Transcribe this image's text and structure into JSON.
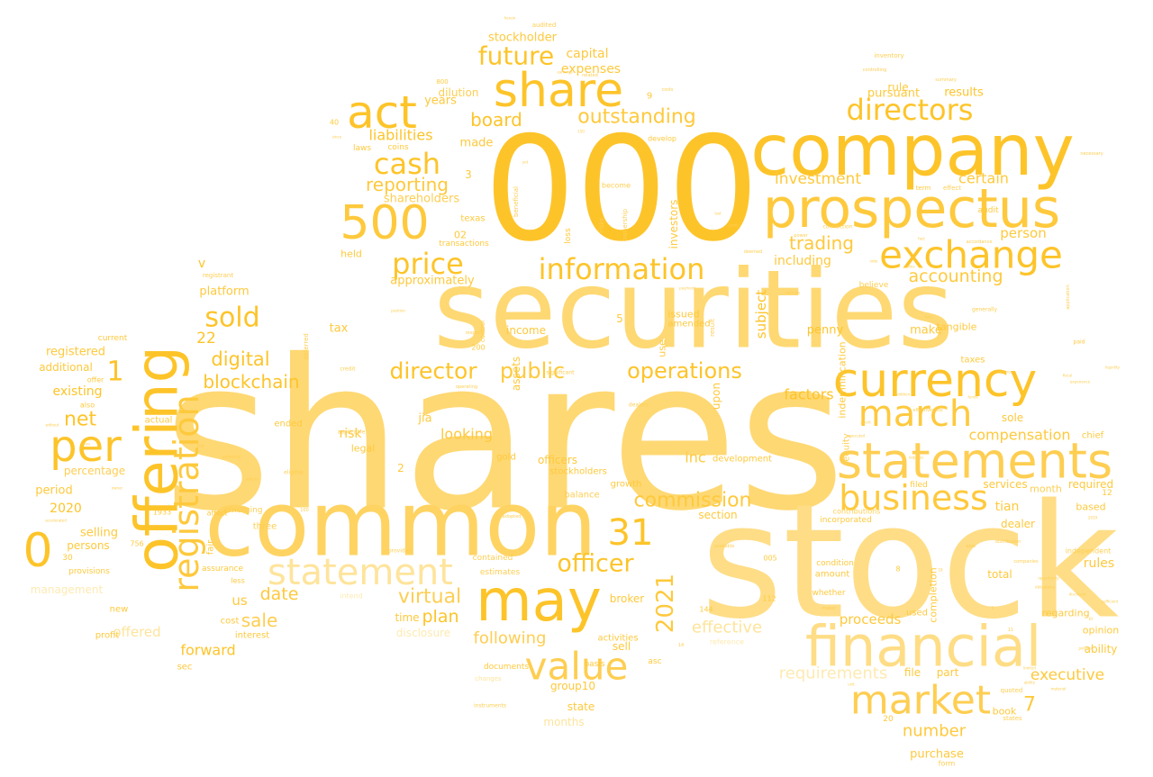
{
  "palette": {
    "background": "#ffffff",
    "shades": [
      "#fdc21f",
      "#fdc42a",
      "#fec93d",
      "#fece52",
      "#fed362",
      "#fed873",
      "#fedd86",
      "#fee49c",
      "#feeab2",
      "#fff0c8"
    ]
  },
  "words": [
    {
      "text": "shares",
      "weight": 1.0
    },
    {
      "text": "stock",
      "weight": 0.93
    },
    {
      "text": "000",
      "weight": 0.9
    },
    {
      "text": "securities",
      "weight": 0.88
    },
    {
      "text": "common",
      "weight": 0.75
    },
    {
      "text": "company",
      "weight": 0.62
    },
    {
      "text": "offering",
      "weight": 0.55
    },
    {
      "text": "prospectus",
      "weight": 0.55
    },
    {
      "text": "financial",
      "weight": 0.52
    },
    {
      "text": "may",
      "weight": 0.5
    },
    {
      "text": "statements",
      "weight": 0.48
    },
    {
      "text": "share",
      "weight": 0.44
    },
    {
      "text": "currency",
      "weight": 0.44
    },
    {
      "text": "per",
      "weight": 0.44
    },
    {
      "text": "act",
      "weight": 0.43
    },
    {
      "text": "500",
      "weight": 0.43
    },
    {
      "text": "market",
      "weight": 0.41
    },
    {
      "text": "value",
      "weight": 0.4
    },
    {
      "text": "registration",
      "weight": 0.4
    },
    {
      "text": "exchange",
      "weight": 0.36
    },
    {
      "text": "0",
      "weight": 0.4
    },
    {
      "text": "statement",
      "weight": 0.36
    },
    {
      "text": "business",
      "weight": 0.35
    },
    {
      "text": "march",
      "weight": 0.36
    },
    {
      "text": "information",
      "weight": 0.33
    },
    {
      "text": "price",
      "weight": 0.33
    },
    {
      "text": "31",
      "weight": 0.38
    },
    {
      "text": "directors",
      "weight": 0.31
    },
    {
      "text": "cash",
      "weight": 0.3
    },
    {
      "text": "sold",
      "weight": 0.3
    },
    {
      "text": "future",
      "weight": 0.28
    },
    {
      "text": "officer",
      "weight": 0.28
    },
    {
      "text": "2021",
      "weight": 0.28
    },
    {
      "text": "director",
      "weight": 0.27
    },
    {
      "text": "public",
      "weight": 0.25
    },
    {
      "text": "operations",
      "weight": 0.25
    },
    {
      "text": "commission",
      "weight": 0.24
    },
    {
      "text": "virtual",
      "weight": 0.24
    },
    {
      "text": "outstanding",
      "weight": 0.24
    },
    {
      "text": "trading",
      "weight": 0.2
    },
    {
      "text": "accounting",
      "weight": 0.2
    },
    {
      "text": "digital",
      "weight": 0.22
    },
    {
      "text": "blockchain",
      "weight": 0.22
    },
    {
      "text": "net",
      "weight": 0.24
    },
    {
      "text": "board",
      "weight": 0.21
    },
    {
      "text": "reporting",
      "weight": 0.21
    },
    {
      "text": "sale",
      "weight": 0.22
    },
    {
      "text": "date",
      "weight": 0.21
    },
    {
      "text": "plan",
      "weight": 0.21
    },
    {
      "text": "effective",
      "weight": 0.2
    },
    {
      "text": "following",
      "weight": 0.2
    },
    {
      "text": "requirements",
      "weight": 0.19
    },
    {
      "text": "executive",
      "weight": 0.2
    },
    {
      "text": "number",
      "weight": 0.2
    },
    {
      "text": "compensation",
      "weight": 0.19
    },
    {
      "text": "investment",
      "weight": 0.19
    },
    {
      "text": "certain",
      "weight": 0.18
    },
    {
      "text": "forward",
      "weight": 0.18
    },
    {
      "text": "proceeds",
      "weight": 0.18
    },
    {
      "text": "factors",
      "weight": 0.18
    },
    {
      "text": "looking",
      "weight": 0.18
    },
    {
      "text": "7",
      "weight": 0.2
    },
    {
      "text": "1",
      "weight": 0.28
    },
    {
      "text": "22",
      "weight": 0.18
    },
    {
      "text": "person",
      "weight": 0.16
    },
    {
      "text": "including",
      "weight": 0.16
    },
    {
      "text": "liabilities",
      "weight": 0.17
    },
    {
      "text": "shareholders",
      "weight": 0.15
    },
    {
      "text": "capital",
      "weight": 0.15
    },
    {
      "text": "expenses",
      "weight": 0.15
    },
    {
      "text": "stockholder",
      "weight": 0.14
    },
    {
      "text": "results",
      "weight": 0.14
    },
    {
      "text": "pursuant",
      "weight": 0.14
    },
    {
      "text": "rule",
      "weight": 0.14
    },
    {
      "text": "made",
      "weight": 0.14
    },
    {
      "text": "years",
      "weight": 0.14
    },
    {
      "text": "dilution",
      "weight": 0.13
    },
    {
      "text": "approximately",
      "weight": 0.14
    },
    {
      "text": "platform",
      "weight": 0.14
    },
    {
      "text": "registered",
      "weight": 0.14
    },
    {
      "text": "additional",
      "weight": 0.13
    },
    {
      "text": "existing",
      "weight": 0.15
    },
    {
      "text": "2020",
      "weight": 0.16
    },
    {
      "text": "period",
      "weight": 0.15
    },
    {
      "text": "selling",
      "weight": 0.14
    },
    {
      "text": "percentage",
      "weight": 0.13
    },
    {
      "text": "persons",
      "weight": 0.13
    },
    {
      "text": "management",
      "weight": 0.13
    },
    {
      "text": "offered",
      "weight": 0.16
    },
    {
      "text": "us",
      "weight": 0.16
    },
    {
      "text": "tax",
      "weight": 0.14
    },
    {
      "text": "risk",
      "weight": 0.14
    },
    {
      "text": "jia",
      "weight": 0.14
    },
    {
      "text": "inc",
      "weight": 0.16
    },
    {
      "text": "income",
      "weight": 0.13
    },
    {
      "text": "issued",
      "weight": 0.12
    },
    {
      "text": "make",
      "weight": 0.14
    },
    {
      "text": "penny",
      "weight": 0.14
    },
    {
      "text": "sole",
      "weight": 0.13
    },
    {
      "text": "tian",
      "weight": 0.15
    },
    {
      "text": "dealer",
      "weight": 0.13
    },
    {
      "text": "services",
      "weight": 0.13
    },
    {
      "text": "month",
      "weight": 0.12
    },
    {
      "text": "required",
      "weight": 0.13
    },
    {
      "text": "based",
      "weight": 0.12
    },
    {
      "text": "rules",
      "weight": 0.14
    },
    {
      "text": "total",
      "weight": 0.13
    },
    {
      "text": "ability",
      "weight": 0.12
    },
    {
      "text": "opinion",
      "weight": 0.12
    },
    {
      "text": "regarding",
      "weight": 0.12
    },
    {
      "text": "group10",
      "weight": 0.13
    },
    {
      "text": "state",
      "weight": 0.13
    },
    {
      "text": "time",
      "weight": 0.13
    },
    {
      "text": "broker",
      "weight": 0.13
    },
    {
      "text": "sell",
      "weight": 0.13
    },
    {
      "text": "officers",
      "weight": 0.13
    },
    {
      "text": "stockholders",
      "weight": 0.11
    },
    {
      "text": "growth",
      "weight": 0.11
    },
    {
      "text": "balance",
      "weight": 0.12
    },
    {
      "text": "development",
      "weight": 0.11
    },
    {
      "text": "section",
      "weight": 0.13
    },
    {
      "text": "upon",
      "weight": 0.13
    },
    {
      "text": "use",
      "weight": 0.12
    },
    {
      "text": "subject",
      "weight": 0.15
    },
    {
      "text": "indemnification",
      "weight": 0.12
    },
    {
      "text": "equity",
      "weight": 0.11
    },
    {
      "text": "completion",
      "weight": 0.12
    },
    {
      "text": "part",
      "weight": 0.12
    },
    {
      "text": "file",
      "weight": 0.12
    },
    {
      "text": "purchase",
      "weight": 0.13
    },
    {
      "text": "book",
      "weight": 0.11
    },
    {
      "text": "investors",
      "weight": 0.13
    },
    {
      "text": "assets",
      "weight": 0.13
    },
    {
      "text": "months",
      "weight": 0.13
    },
    {
      "text": "disclosure",
      "weight": 0.12
    },
    {
      "text": "amended",
      "weight": 0.11
    },
    {
      "text": "held",
      "weight": 0.12
    },
    {
      "text": "transactions",
      "weight": 0.1
    },
    {
      "text": "texas",
      "weight": 0.11
    },
    {
      "text": "02",
      "weight": 0.13
    },
    {
      "text": "tangible",
      "weight": 0.12
    },
    {
      "text": "taxes",
      "weight": 0.11
    },
    {
      "text": "believe",
      "weight": 0.1
    },
    {
      "text": "filed",
      "weight": 0.11
    },
    {
      "text": "contributions",
      "weight": 0.1
    },
    {
      "text": "incorporated",
      "weight": 0.1
    },
    {
      "text": "amount",
      "weight": 0.11
    },
    {
      "text": "condition",
      "weight": 0.11
    },
    {
      "text": "whether",
      "weight": 0.1
    },
    {
      "text": "used",
      "weight": 0.11
    },
    {
      "text": "chief",
      "weight": 0.1
    },
    {
      "text": "independent",
      "weight": 0.09
    },
    {
      "text": "ended",
      "weight": 0.11
    },
    {
      "text": "legal",
      "weight": 0.11
    },
    {
      "text": "actual",
      "weight": 0.11
    },
    {
      "text": "interest",
      "weight": 0.11
    },
    {
      "text": "three",
      "weight": 0.1
    },
    {
      "text": "emerging",
      "weight": 0.1
    },
    {
      "text": "cost",
      "weight": 0.1
    },
    {
      "text": "fair",
      "weight": 0.11
    },
    {
      "text": "assurance",
      "weight": 0.1
    },
    {
      "text": "less",
      "weight": 0.09
    },
    {
      "text": "profit",
      "weight": 0.1
    },
    {
      "text": "new",
      "weight": 0.11
    },
    {
      "text": "provisions",
      "weight": 0.1
    },
    {
      "text": "sec",
      "weight": 0.1
    },
    {
      "text": "gold",
      "weight": 0.1
    },
    {
      "text": "activities",
      "weight": 0.11
    },
    {
      "text": "basis",
      "weight": 0.1
    },
    {
      "text": "documents",
      "weight": 0.1
    },
    {
      "text": "estimates",
      "weight": 0.1
    },
    {
      "text": "contained",
      "weight": 0.1
    },
    {
      "text": "asc",
      "weight": 0.1
    },
    {
      "text": "develop",
      "weight": 0.09
    },
    {
      "text": "become",
      "weight": 0.09
    },
    {
      "text": "coins",
      "weight": 0.1
    },
    {
      "text": "laws",
      "weight": 0.1
    },
    {
      "text": "current",
      "weight": 0.1
    },
    {
      "text": "audited",
      "weight": 0.08
    },
    {
      "text": "inventory",
      "weight": 0.08
    },
    {
      "text": "audit",
      "weight": 0.09
    },
    {
      "text": "term",
      "weight": 0.08
    },
    {
      "text": "effect",
      "weight": 0.08
    },
    {
      "text": "affect",
      "weight": 0.09
    },
    {
      "text": "offer",
      "weight": 0.09
    },
    {
      "text": "also",
      "weight": 0.09
    },
    {
      "text": "v",
      "weight": 0.14
    },
    {
      "text": "5",
      "weight": 0.13
    },
    {
      "text": "2",
      "weight": 0.14
    },
    {
      "text": "3",
      "weight": 0.13
    },
    {
      "text": "9",
      "weight": 0.11
    },
    {
      "text": "12",
      "weight": 0.1
    },
    {
      "text": "20",
      "weight": 0.1
    },
    {
      "text": "30",
      "weight": 0.1
    },
    {
      "text": "40",
      "weight": 0.1
    },
    {
      "text": "200",
      "weight": 0.09
    },
    {
      "text": "005",
      "weight": 0.09
    },
    {
      "text": "112",
      "weight": 0.09
    },
    {
      "text": "144",
      "weight": 0.09
    },
    {
      "text": "1933",
      "weight": 0.09
    },
    {
      "text": "756",
      "weight": 0.09
    },
    {
      "text": "800",
      "weight": 0.08
    },
    {
      "text": "8",
      "weight": 0.09
    },
    {
      "text": "loss",
      "weight": 0.1
    },
    {
      "text": "control",
      "weight": 0.08
    },
    {
      "text": "ownership",
      "weight": 0.08
    },
    {
      "text": "beneficial",
      "weight": 0.08
    },
    {
      "text": "risks",
      "weight": 0.08
    },
    {
      "text": "result",
      "weight": 0.08
    },
    {
      "text": "deferred",
      "weight": 0.08
    },
    {
      "text": "registrant",
      "weight": 0.08
    },
    {
      "text": "quoted",
      "weight": 0.07
    },
    {
      "text": "states",
      "weight": 0.07
    },
    {
      "text": "form",
      "weight": 0.08
    },
    {
      "text": "intend",
      "weight": 0.08
    },
    {
      "text": "reference",
      "weight": 0.07
    },
    {
      "text": "changes",
      "weight": 0.07
    },
    {
      "text": "instruments",
      "weight": 0.06
    },
    {
      "text": "provided",
      "weight": 0.07
    },
    {
      "text": "dealers",
      "weight": 0.06
    },
    {
      "text": "significant",
      "weight": 0.06
    },
    {
      "text": "credit",
      "weight": 0.06
    },
    {
      "text": "applicable",
      "weight": 0.06
    },
    {
      "text": "eligible",
      "weight": 0.06
    },
    {
      "text": "connection",
      "weight": 0.06
    },
    {
      "text": "generally",
      "weight": 0.06
    },
    {
      "text": "summary",
      "weight": 0.05
    },
    {
      "text": "controlling",
      "weight": 0.05
    },
    {
      "text": "accordance",
      "weight": 0.05
    },
    {
      "text": "necessary",
      "weight": 0.05
    },
    {
      "text": "application",
      "weight": 0.05
    },
    {
      "text": "effectiveness",
      "weight": 0.05
    },
    {
      "text": "related",
      "weight": 0.05
    },
    {
      "text": "costs",
      "weight": 0.05
    },
    {
      "text": "deemed",
      "weight": 0.05
    },
    {
      "text": "power",
      "weight": 0.05
    },
    {
      "text": "available",
      "weight": 0.05
    },
    {
      "text": "distribution",
      "weight": 0.05
    },
    {
      "text": "operating",
      "weight": 0.05
    },
    {
      "text": "respect",
      "weight": 0.05
    },
    {
      "text": "adopted",
      "weight": 0.05
    },
    {
      "text": "companies",
      "weight": 0.05
    },
    {
      "text": "external",
      "weight": 0.05
    },
    {
      "text": "options",
      "weight": 0.04
    },
    {
      "text": "notes",
      "weight": 0.04
    },
    {
      "text": "unit",
      "weight": 0.04
    },
    {
      "text": "fees",
      "weight": 0.04
    },
    {
      "text": "agent",
      "weight": 0.04
    },
    {
      "text": "sales",
      "weight": 0.04
    },
    {
      "text": "high",
      "weight": 0.04
    },
    {
      "text": "owner",
      "weight": 0.04
    },
    {
      "text": "accelerated",
      "weight": 0.04
    },
    {
      "text": "requires",
      "weight": 0.04
    },
    {
      "text": "maker",
      "weight": 0.05
    },
    {
      "text": "funds",
      "weight": 0.04
    },
    {
      "text": "position",
      "weight": 0.04
    },
    {
      "text": "without",
      "weight": 0.04
    },
    {
      "text": "since",
      "weight": 0.04
    },
    {
      "text": "yet",
      "weight": 0.04
    },
    {
      "text": "payment",
      "weight": 0.04
    },
    {
      "text": "exercise",
      "weight": 0.04
    },
    {
      "text": "issuance",
      "weight": 0.04
    },
    {
      "text": "herein",
      "weight": 0.04
    },
    {
      "text": "liquidity",
      "weight": 0.04
    },
    {
      "text": "fiscal",
      "weight": 0.04
    },
    {
      "text": "addition",
      "weight": 0.04
    },
    {
      "text": "experience",
      "weight": 0.04
    },
    {
      "text": "executed",
      "weight": 0.04
    },
    {
      "text": "earnings",
      "weight": 0.04
    },
    {
      "text": "opportunity",
      "weight": 0.04
    },
    {
      "text": "obligations",
      "weight": 0.04
    },
    {
      "text": "disclosed",
      "weight": 0.04
    },
    {
      "text": "sufficient",
      "weight": 0.04
    },
    {
      "text": "policies",
      "weight": 0.04
    },
    {
      "text": "material",
      "weight": 0.04
    },
    {
      "text": "limited",
      "weight": 0.04
    },
    {
      "text": "ability",
      "weight": 0.04
    },
    {
      "text": "paid",
      "weight": 0.05
    },
    {
      "text": "fact",
      "weight": 0.04
    },
    {
      "text": "note",
      "weight": 0.04
    },
    {
      "text": "name",
      "weight": 0.04
    },
    {
      "text": "last",
      "weight": 0.04
    },
    {
      "text": "able",
      "weight": 0.04
    },
    {
      "text": "iii",
      "weight": 0.04
    },
    {
      "text": "11",
      "weight": 0.04
    },
    {
      "text": "14",
      "weight": 0.04
    },
    {
      "text": "18",
      "weight": 0.04
    },
    {
      "text": "100",
      "weight": 0.04
    },
    {
      "text": "150",
      "weight": 0.04
    },
    {
      "text": "2019",
      "weight": 0.04
    },
    {
      "text": "ii",
      "weight": 0.04
    }
  ]
}
